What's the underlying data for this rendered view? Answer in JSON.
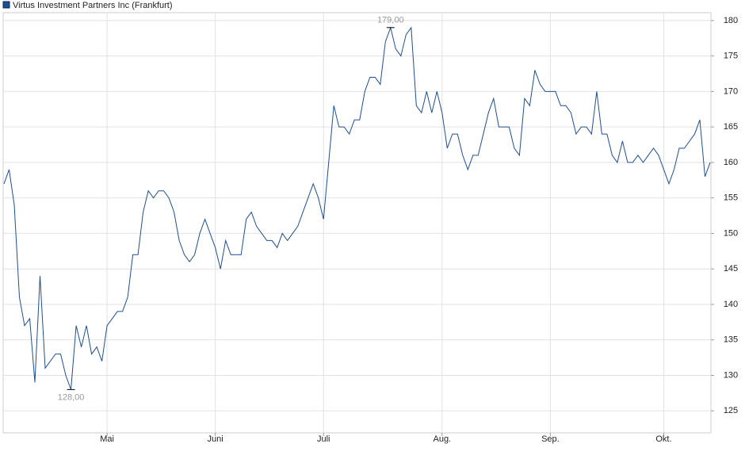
{
  "chart_data": {
    "type": "line",
    "series": [
      {
        "name": "Virtus Investment Partners Inc (Frankfurt)",
        "color": "#1f4f8f",
        "values": [
          157,
          159,
          154,
          141,
          137,
          138,
          129,
          144,
          131,
          132,
          133,
          133,
          130,
          128,
          137,
          134,
          137,
          133,
          134,
          132,
          137,
          138,
          139,
          139,
          141,
          147,
          147,
          153,
          156,
          155,
          156,
          156,
          155,
          153,
          149,
          147,
          146,
          147,
          150,
          152,
          150,
          148,
          145,
          149,
          147,
          147,
          147,
          152,
          153,
          151,
          150,
          149,
          149,
          148,
          150,
          149,
          150,
          151,
          153,
          155,
          157,
          155,
          152,
          160,
          168,
          165,
          165,
          164,
          166,
          166,
          170,
          172,
          172,
          171,
          177,
          179,
          176,
          175,
          178,
          179,
          168,
          167,
          170,
          167,
          170,
          167,
          162,
          164,
          164,
          161,
          159,
          161,
          161,
          164,
          167,
          169,
          165,
          165,
          165,
          162,
          161,
          169,
          168,
          173,
          171,
          170,
          170,
          170,
          168,
          168,
          167,
          164,
          165,
          165,
          164,
          170,
          164,
          164,
          161,
          160,
          163,
          160,
          160,
          161,
          160,
          161,
          162,
          161,
          159,
          157,
          159,
          162,
          162,
          163,
          164,
          166,
          158,
          160
        ]
      }
    ],
    "categories": [
      null,
      null,
      null,
      null,
      null,
      null,
      null,
      null,
      null,
      null,
      null,
      null,
      null,
      null,
      null,
      null,
      null,
      null,
      null,
      null,
      "Mai",
      null,
      null,
      null,
      null,
      null,
      null,
      null,
      null,
      null,
      null,
      null,
      null,
      null,
      null,
      null,
      null,
      null,
      null,
      null,
      null,
      "Juni",
      null,
      null,
      null,
      null,
      null,
      null,
      null,
      null,
      null,
      null,
      null,
      null,
      null,
      null,
      null,
      null,
      null,
      null,
      null,
      null,
      "Juli",
      null,
      null,
      null,
      null,
      null,
      null,
      null,
      null,
      null,
      null,
      null,
      null,
      null,
      null,
      null,
      null,
      null,
      null,
      null,
      null,
      null,
      null,
      "Aug.",
      null,
      null,
      null,
      null,
      null,
      null,
      null,
      null,
      null,
      null,
      null,
      null,
      null,
      null,
      null,
      null,
      null,
      null,
      null,
      null,
      "Sep.",
      null,
      null,
      null,
      null,
      null,
      null,
      null,
      null,
      null,
      null,
      null,
      null,
      null,
      null,
      null,
      null,
      null,
      null,
      null,
      null,
      null,
      "Okt.",
      null,
      null,
      null,
      null,
      null,
      null,
      null,
      null,
      null
    ],
    "annotations": {
      "max": "179,00",
      "min": "128,00"
    },
    "ylim": [
      121.9,
      181.1
    ],
    "yticks": [
      125,
      130,
      135,
      140,
      145,
      150,
      155,
      160,
      165,
      170,
      175,
      180
    ],
    "grid": true
  }
}
